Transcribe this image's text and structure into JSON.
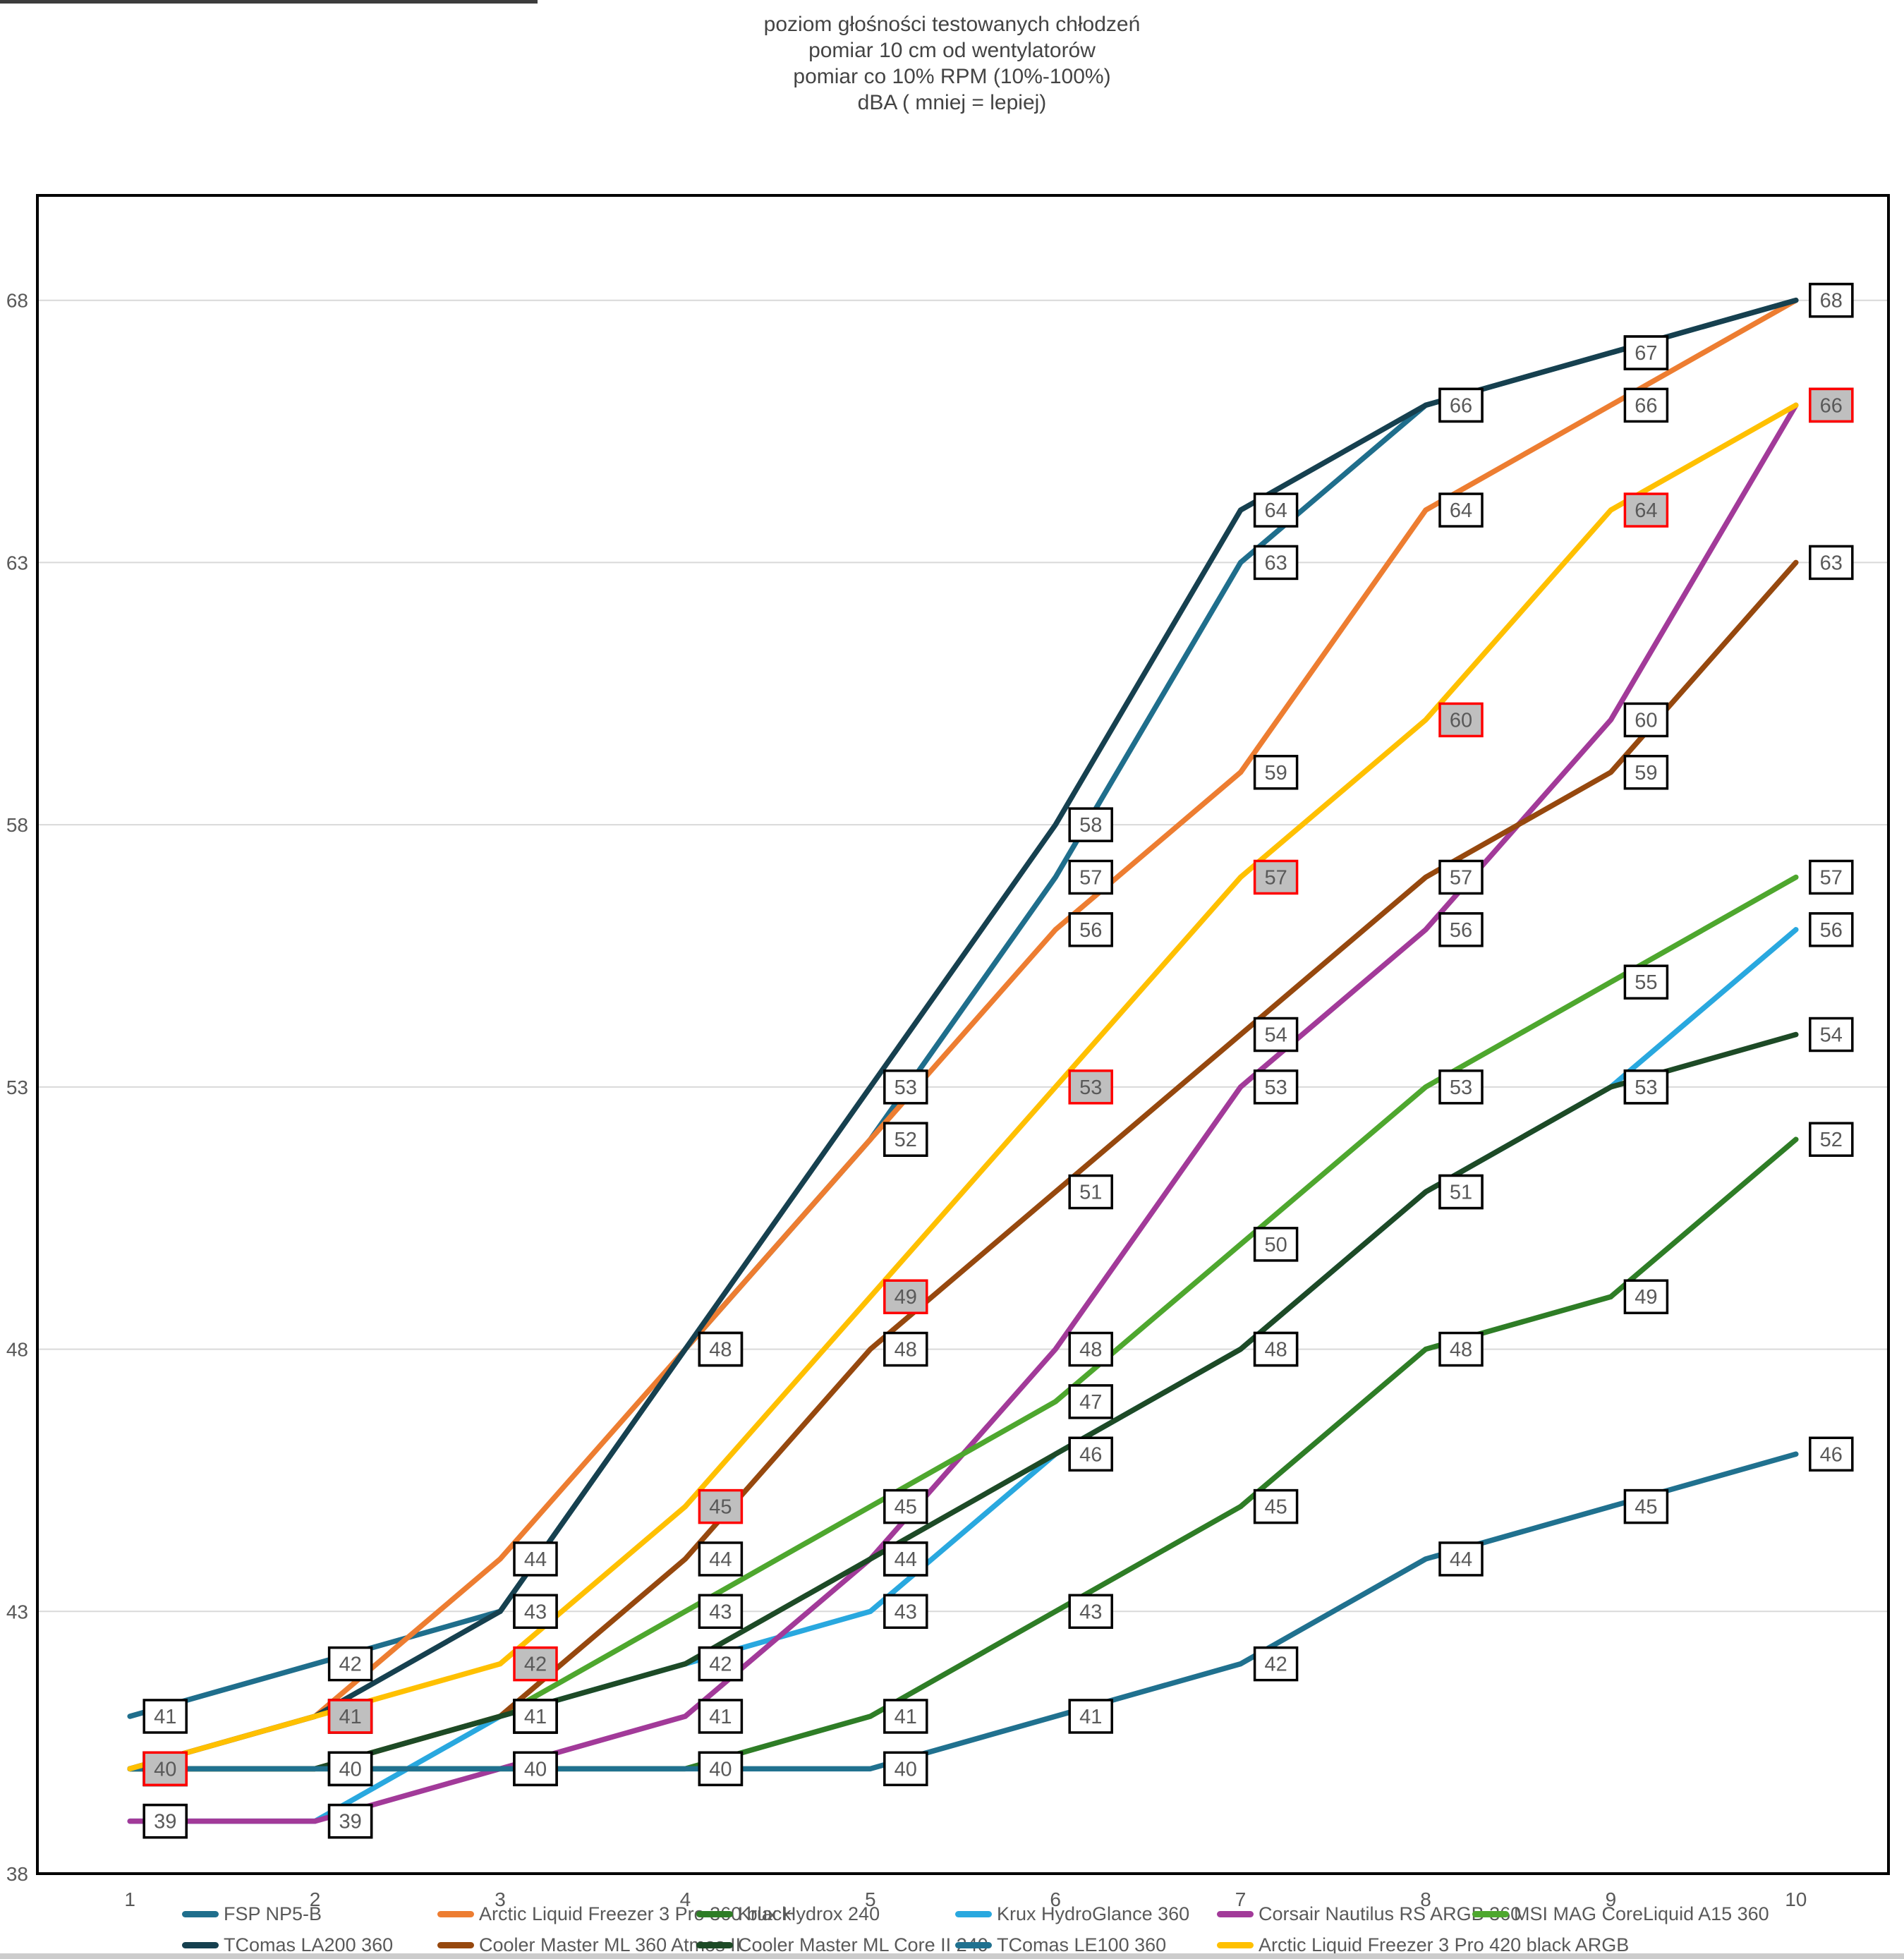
{
  "title": {
    "line1": "poziom głośności testowanych chłodzeń",
    "line2": "pomiar 10 cm od wentylatorów",
    "line3": "pomiar co 10% RPM (10%-100%)",
    "line4": "dBA ( mniej = lepiej)"
  },
  "chart_data": {
    "type": "line",
    "x": [
      1,
      2,
      3,
      4,
      5,
      6,
      7,
      8,
      9,
      10
    ],
    "xlabel": "",
    "ylabel": "",
    "ylim": [
      38,
      70
    ],
    "yticks": [
      38,
      43,
      48,
      53,
      58,
      63,
      68
    ],
    "grid": true,
    "legend_position": "bottom",
    "data_labels": true,
    "series": [
      {
        "name": "FSP NP5-B",
        "color": "#1F6E8C",
        "highlighted": false,
        "values": [
          41,
          42,
          43,
          48,
          52,
          57,
          63,
          66,
          67,
          68
        ]
      },
      {
        "name": "Arctic Liquid Freezer 3 Pro 360 black",
        "color": "#ED7D31",
        "highlighted": false,
        "values": [
          40,
          41,
          44,
          48,
          52,
          56,
          59,
          64,
          66,
          68
        ]
      },
      {
        "name": "Krux Hydrox 240",
        "color": "#2E7D26",
        "highlighted": false,
        "values": [
          40,
          40,
          40,
          40,
          41,
          43,
          45,
          48,
          49,
          52
        ]
      },
      {
        "name": "Krux HydroGlance 360",
        "color": "#29A8DF",
        "highlighted": false,
        "values": [
          39,
          39,
          41,
          42,
          43,
          46,
          48,
          51,
          53,
          56
        ]
      },
      {
        "name": "Corsair  Nautilus RS ARGB 360",
        "color": "#A23A99",
        "highlighted": false,
        "values": [
          39,
          39,
          40,
          41,
          44,
          48,
          53,
          56,
          60,
          66
        ]
      },
      {
        "name": "MSI MAG CoreLiquid A15 360",
        "color": "#4EA72E",
        "highlighted": false,
        "values": [
          40,
          40,
          41,
          43,
          45,
          47,
          50,
          53,
          55,
          57
        ]
      },
      {
        "name": "TComas LA200 360",
        "color": "#16404F",
        "highlighted": false,
        "values": [
          40,
          41,
          43,
          48,
          53,
          58,
          64,
          66,
          67,
          68
        ]
      },
      {
        "name": "Cooler Master ML 360 Atmos II",
        "color": "#96480E",
        "highlighted": false,
        "values": [
          40,
          40,
          41,
          44,
          48,
          51,
          54,
          57,
          59,
          63
        ]
      },
      {
        "name": "Cooler Master ML Core II 240",
        "color": "#1D4A26",
        "highlighted": false,
        "values": [
          40,
          40,
          41,
          42,
          44,
          46,
          48,
          51,
          53,
          54
        ]
      },
      {
        "name": "TComas LE100 360",
        "color": "#20718F",
        "highlighted": false,
        "values": [
          40,
          40,
          40,
          40,
          40,
          41,
          42,
          44,
          45,
          46
        ]
      },
      {
        "name": "Arctic Liquid Freezer 3 Pro 420 black ARGB",
        "color": "#FFC000",
        "highlighted": true,
        "values": [
          40,
          41,
          42,
          45,
          49,
          53,
          57,
          60,
          64,
          66
        ]
      }
    ],
    "label_style": {
      "text_color": "#595959",
      "normal_bg": "#FFFFFF",
      "normal_border": "#000000",
      "highlight_bg": "#BFBFBF",
      "highlight_border": "#FF0000"
    },
    "axis_text_color": "#595959",
    "gridline_color": "#D9D9D9",
    "plot_border_color": "#000000"
  }
}
